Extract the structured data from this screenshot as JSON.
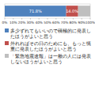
{
  "chart_data": {
    "type": "bar",
    "orientation": "horizontal",
    "stacked": true,
    "data_labels": true,
    "tick_labels": "x",
    "categories": [
      null
    ],
    "series": [
      {
        "name": "多少ずれてもいいので積極的に発表したほうがよいと思う",
        "color": "#4f81bd",
        "values": [
          71.8
        ],
        "value_labels": [
          "71.8%"
        ]
      },
      {
        "name": "外れればその日のためにも、もっと慎重に発表したほうがよいと思う",
        "color": "#c0504d",
        "values": [
          14.0
        ],
        "value_labels": [
          "14.0%"
        ]
      },
      {
        "name": "「緊急地震速報」は一般の人には発表しないほうがよいと思う",
        "color": "#bfbfbf",
        "values": [
          14.2
        ]
      }
    ],
    "xlim": [
      0,
      100
    ],
    "xticks": [
      {
        "value": 0,
        "label": "0%"
      },
      {
        "value": 10,
        "label": "10%"
      },
      {
        "value": 20,
        "label": "20%"
      },
      {
        "value": 30,
        "label": "30%"
      },
      {
        "value": 40,
        "label": "40%"
      },
      {
        "value": 50,
        "label": "50%"
      },
      {
        "value": 60,
        "label": "60%"
      },
      {
        "value": 70,
        "label": "70%"
      },
      {
        "value": 80,
        "label": "80%"
      },
      {
        "value": 90,
        "label": "90%"
      },
      {
        "value": 100,
        "label": "100%"
      }
    ]
  }
}
